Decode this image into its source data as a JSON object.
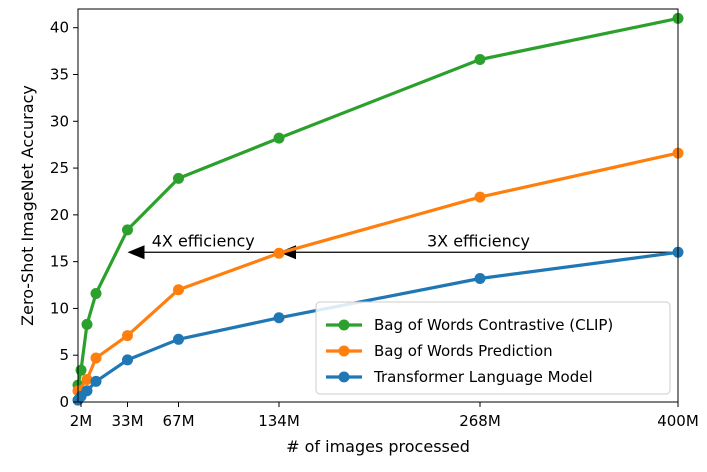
{
  "chart_data": {
    "type": "line",
    "xlabel": "# of images processed",
    "ylabel": "Zero-Shot ImageNet Accuracy",
    "xlim": [
      0,
      400
    ],
    "ylim": [
      0,
      42
    ],
    "x_ticks": [
      {
        "value": 2,
        "label": "2M"
      },
      {
        "value": 33,
        "label": "33M"
      },
      {
        "value": 67,
        "label": "67M"
      },
      {
        "value": 134,
        "label": "134M"
      },
      {
        "value": 268,
        "label": "268M"
      },
      {
        "value": 400,
        "label": "400M"
      }
    ],
    "y_ticks": [
      0,
      5,
      10,
      15,
      20,
      25,
      30,
      35,
      40
    ],
    "legend_position": "lower-right",
    "series": [
      {
        "name": "Bag of Words Contrastive (CLIP)",
        "color": "#2ca02c",
        "x": [
          0,
          2,
          6,
          12,
          33,
          67,
          134,
          268,
          400
        ],
        "y": [
          1.8,
          3.4,
          8.3,
          11.6,
          18.4,
          23.9,
          28.2,
          36.6,
          41.0
        ]
      },
      {
        "name": "Bag of Words Prediction",
        "color": "#ff7f0e",
        "x": [
          0,
          6,
          12,
          33,
          67,
          134,
          268,
          400
        ],
        "y": [
          1.2,
          2.4,
          4.7,
          7.1,
          12.0,
          15.9,
          21.9,
          26.6
        ]
      },
      {
        "name": "Transformer Language Model",
        "color": "#1f77b4",
        "x": [
          0,
          2,
          6,
          12,
          33,
          67,
          134,
          268,
          400
        ],
        "y": [
          0.2,
          0.6,
          1.2,
          2.2,
          4.5,
          6.7,
          9.0,
          13.2,
          16.0
        ]
      }
    ],
    "annotations": [
      {
        "text": "4X efficiency",
        "x_from": 134,
        "x_to": 33,
        "y": 16.0
      },
      {
        "text": "3X efficiency",
        "x_from": 400,
        "x_to": 134,
        "y": 16.0
      }
    ]
  }
}
